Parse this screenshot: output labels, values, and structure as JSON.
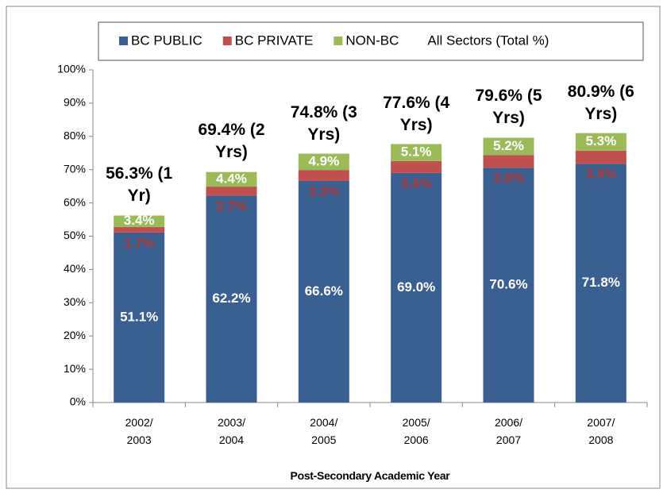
{
  "chart_data": {
    "type": "stacked_bar",
    "categories": [
      "2002/ 2003",
      "2003/ 2004",
      "2004/ 2005",
      "2005/ 2006",
      "2006/ 2007",
      "2007/ 2008"
    ],
    "series": [
      {
        "name": "BC PUBLIC",
        "color": "#3a5f91",
        "label_color": "#ffffff",
        "values": [
          51.1,
          62.2,
          66.6,
          69.0,
          70.6,
          71.8
        ],
        "value_labels": [
          "51.1%",
          "62.2%",
          "66.6%",
          "69.0%",
          "70.6%",
          "71.8%"
        ]
      },
      {
        "name": "BC PRIVATE",
        "color": "#c0504d",
        "label_color": "#b03a36",
        "values": [
          1.7,
          2.7,
          3.3,
          3.6,
          3.8,
          3.9
        ],
        "value_labels": [
          "1.7%",
          "2.7%",
          "3.3%",
          "3.6%",
          "3.8%",
          "3.9%"
        ]
      },
      {
        "name": "NON-BC",
        "color": "#9bbb59",
        "label_color": "#ffffff",
        "values": [
          3.4,
          4.4,
          4.9,
          5.1,
          5.2,
          5.3
        ],
        "value_labels": [
          "3.4%",
          "4.4%",
          "4.9%",
          "5.1%",
          "5.2%",
          "5.3%"
        ]
      }
    ],
    "totals": {
      "name": "All Sectors (Total %)",
      "values": [
        56.3,
        69.4,
        74.8,
        77.6,
        79.6,
        80.9
      ],
      "value_labels": [
        "56.3% (1 Yr)",
        "69.4% (2 Yrs)",
        "74.8% (3 Yrs)",
        "77.6% (4 Yrs)",
        "79.6% (5 Yrs)",
        "80.9% (6 Yrs)"
      ]
    },
    "x_label": "Post-Secondary Academic Year",
    "ylim": [
      0,
      100
    ],
    "yticks": [
      {
        "value": 0,
        "label": "0%"
      },
      {
        "value": 10,
        "label": "10%"
      },
      {
        "value": 20,
        "label": "20%"
      },
      {
        "value": 30,
        "label": "30%"
      },
      {
        "value": 40,
        "label": "40%"
      },
      {
        "value": 50,
        "label": "50%"
      },
      {
        "value": 60,
        "label": "60%"
      },
      {
        "value": 70,
        "label": "70%"
      },
      {
        "value": 80,
        "label": "80%"
      },
      {
        "value": 90,
        "label": "90%"
      },
      {
        "value": 100,
        "label": "100%"
      }
    ],
    "grid": false
  }
}
